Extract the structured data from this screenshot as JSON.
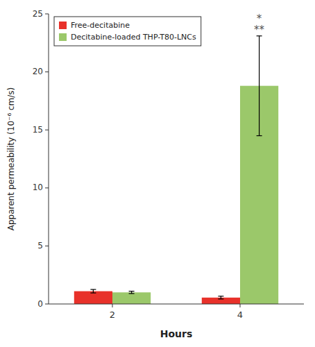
{
  "chart_data": {
    "type": "bar",
    "xlabel": "Hours",
    "ylabel": "Apparent permeability (10⁻⁶ cm/s)",
    "categories": [
      "2",
      "4"
    ],
    "series": [
      {
        "name": "Free-decitabine",
        "color": "#e8312a",
        "values": [
          1.1,
          0.55
        ],
        "errors": [
          0.15,
          0.12
        ]
      },
      {
        "name": "Decitabine-loaded THP-T80-LNCs",
        "color": "#9bc86a",
        "values": [
          1.0,
          18.8
        ],
        "errors": [
          0.1,
          4.3
        ]
      }
    ],
    "ylim": [
      0,
      25
    ],
    "yticks": [
      0,
      5,
      10,
      15,
      20,
      25
    ],
    "grid": false,
    "legend": "upper left",
    "annotations": [
      {
        "text": "*",
        "category": "4",
        "series": "Decitabine-loaded THP-T80-LNCs"
      },
      {
        "text": "**",
        "category": "4",
        "series": "Decitabine-loaded THP-T80-LNCs"
      }
    ]
  }
}
